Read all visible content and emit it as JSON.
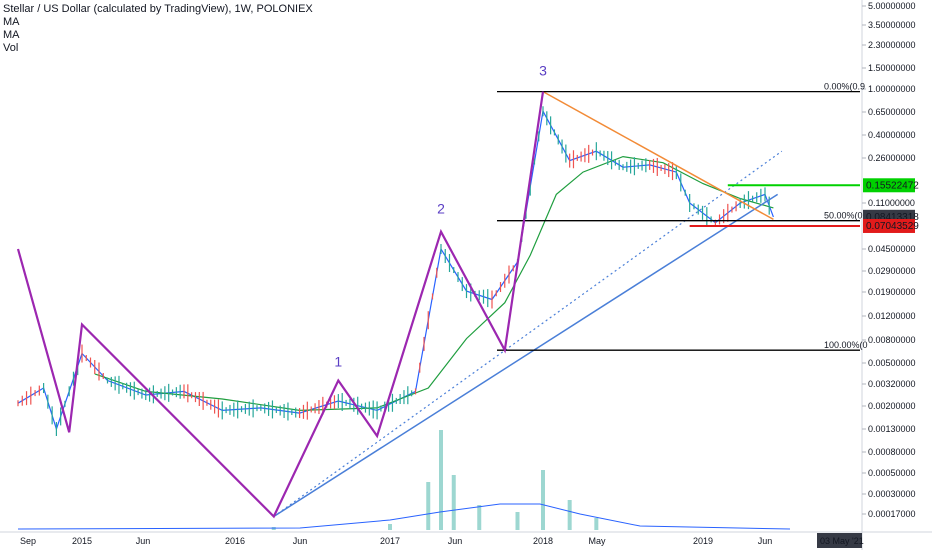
{
  "header": {
    "title": "Stellar / US Dollar (calculated by TradingView), 1W, POLONIEX",
    "indicators": [
      "MA",
      "MA",
      "Vol"
    ]
  },
  "chart_data": {
    "type": "line",
    "scale": "log",
    "ylim": [
      0.00013,
      6.0
    ],
    "y_ticks": [
      "5.00000000",
      "3.50000000",
      "2.30000000",
      "1.50000000",
      "1.00000000",
      "0.65000000",
      "0.40000000",
      "0.26000000",
      "0.11000000",
      "0.04500000",
      "0.02900000",
      "0.01900000",
      "0.01200000",
      "0.00800000",
      "0.00500000",
      "0.00320000",
      "0.00200000",
      "0.00130000",
      "0.00080000",
      "0.00050000",
      "0.00030000",
      "0.00017000"
    ],
    "x_ticks": [
      "Sep",
      "2015",
      "Jun",
      "2016",
      "Jun",
      "2017",
      "Jun",
      "2018",
      "May",
      "2019",
      "Jun"
    ],
    "x_range": [
      "2014-08",
      "2021-05"
    ],
    "price_labels": {
      "current": "0.08413318",
      "resistance": "0.15522472",
      "support": "0.07043529",
      "date": "03 May '21"
    },
    "fib_levels": [
      {
        "label": "0.00%(0.9",
        "value": 0.95
      },
      {
        "label": "50.00%(0.0",
        "value": 0.078
      },
      {
        "label": "100.00%(0",
        "value": 0.0064
      }
    ],
    "wave_labels": [
      "1",
      "2",
      "3"
    ],
    "zigzag": [
      {
        "date": "2014-08",
        "value": 0.045
      },
      {
        "date": "2014-12",
        "value": 0.0012
      },
      {
        "date": "2015-01",
        "value": 0.0105
      },
      {
        "date": "2016-04",
        "value": 0.00016
      },
      {
        "date": "2016-09",
        "value": 0.0035
      },
      {
        "date": "2016-12",
        "value": 0.0011
      },
      {
        "date": "2017-05",
        "value": 0.063
      },
      {
        "date": "2017-10",
        "value": 0.0064
      },
      {
        "date": "2018-01",
        "value": 0.95
      }
    ],
    "series": [
      {
        "values": [
          {
            "date": "2014-08",
            "value": 0.0022
          },
          {
            "date": "2014-10",
            "value": 0.003
          },
          {
            "date": "2014-11",
            "value": 0.0013
          },
          {
            "date": "2015-01",
            "value": 0.006
          },
          {
            "date": "2015-03",
            "value": 0.0035
          },
          {
            "date": "2015-06",
            "value": 0.0026
          },
          {
            "date": "2015-09",
            "value": 0.0028
          },
          {
            "date": "2015-12",
            "value": 0.0019
          },
          {
            "date": "2016-03",
            "value": 0.002
          },
          {
            "date": "2016-06",
            "value": 0.0018
          },
          {
            "date": "2016-09",
            "value": 0.0023
          },
          {
            "date": "2016-12",
            "value": 0.0019
          },
          {
            "date": "2017-03",
            "value": 0.0028
          },
          {
            "date": "2017-05",
            "value": 0.045
          },
          {
            "date": "2017-07",
            "value": 0.02
          },
          {
            "date": "2017-09",
            "value": 0.017
          },
          {
            "date": "2017-11",
            "value": 0.035
          },
          {
            "date": "2018-01",
            "value": 0.65
          },
          {
            "date": "2018-03",
            "value": 0.25
          },
          {
            "date": "2018-05",
            "value": 0.3
          },
          {
            "date": "2018-07",
            "value": 0.22
          },
          {
            "date": "2018-09",
            "value": 0.23
          },
          {
            "date": "2018-11",
            "value": 0.2
          },
          {
            "date": "2018-12",
            "value": 0.11
          },
          {
            "date": "2019-02",
            "value": 0.075
          },
          {
            "date": "2019-04",
            "value": 0.11
          },
          {
            "date": "2019-06",
            "value": 0.13
          },
          {
            "date": "2019-08",
            "value": 0.084
          }
        ]
      },
      {
        "values": [
          {
            "date": "2015-02",
            "value": 0.004
          },
          {
            "date": "2015-06",
            "value": 0.0028
          },
          {
            "date": "2015-12",
            "value": 0.0024
          },
          {
            "date": "2016-06",
            "value": 0.0019
          },
          {
            "date": "2016-12",
            "value": 0.002
          },
          {
            "date": "2017-04",
            "value": 0.003
          },
          {
            "date": "2017-07",
            "value": 0.008
          },
          {
            "date": "2017-10",
            "value": 0.016
          },
          {
            "date": "2017-12",
            "value": 0.04
          },
          {
            "date": "2018-02",
            "value": 0.13
          },
          {
            "date": "2018-04",
            "value": 0.2
          },
          {
            "date": "2018-07",
            "value": 0.27
          },
          {
            "date": "2018-10",
            "value": 0.24
          },
          {
            "date": "2019-01",
            "value": 0.16
          },
          {
            "date": "2019-04",
            "value": 0.12
          },
          {
            "date": "2019-08",
            "value": 0.1
          }
        ]
      }
    ],
    "trendlines": [
      {
        "from": {
          "date": "2016-04",
          "value": 0.00016
        },
        "to": {
          "date": "2019-09",
          "value": 0.13
        },
        "style": "solid"
      },
      {
        "from": {
          "date": "2016-04",
          "value": 0.00016
        },
        "to": {
          "date": "2019-10",
          "value": 0.3
        },
        "style": "dotted"
      },
      {
        "from": {
          "date": "2018-01",
          "value": 0.95
        },
        "to": {
          "date": "2019-08",
          "value": 0.08
        },
        "style": "solid"
      }
    ],
    "boxes": [
      {
        "from": "2019-03",
        "to": "2019-10",
        "value": 0.155
      },
      {
        "from": "2018-12",
        "to": "2019-10",
        "value": 0.0704
      }
    ],
    "volume": [
      {
        "date": "2016-04",
        "value": 3
      },
      {
        "date": "2017-01",
        "value": 6
      },
      {
        "date": "2017-04",
        "value": 48
      },
      {
        "date": "2017-05",
        "value": 100
      },
      {
        "date": "2017-06",
        "value": 55
      },
      {
        "date": "2017-08",
        "value": 25
      },
      {
        "date": "2017-11",
        "value": 18
      },
      {
        "date": "2018-01",
        "value": 60
      },
      {
        "date": "2018-03",
        "value": 30
      },
      {
        "date": "2018-05",
        "value": 12
      }
    ]
  },
  "colors": {
    "up": "#26a69a",
    "down": "#ef5350",
    "ma_fast": "#2962ff",
    "ma_slow": "#1f9e3f",
    "wave": "#9c27b0",
    "trend": "#4a7fd8",
    "orange": "#f28b37",
    "green": "#00d100",
    "red": "#e21b1b",
    "dark": "#363a45"
  }
}
